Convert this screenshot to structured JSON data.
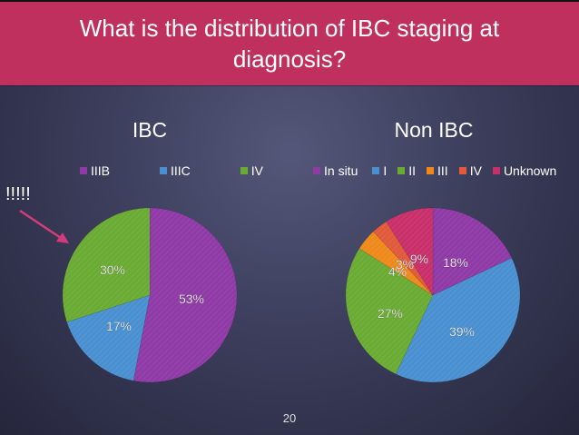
{
  "slide": {
    "title": "What is the distribution of IBC staging at diagnosis?",
    "annotation": "!!!!!",
    "page_number": "20"
  },
  "colors": {
    "title_band": "#c0305e",
    "arrow": "#d43b7a"
  },
  "chart_data": [
    {
      "type": "pie",
      "title": "IBC",
      "legend_position": "top",
      "categories": [
        "IIIB",
        "IIIC",
        "IV"
      ],
      "values": [
        53,
        17,
        30
      ],
      "labels": [
        "53%",
        "17%",
        "30%"
      ],
      "colors": [
        "#8f3aa6",
        "#4a90d0",
        "#6aab34"
      ],
      "legend_entries": [
        "IIIB",
        "IIIC",
        "IV"
      ],
      "legend_colors": [
        "#8f3aa6",
        "#4a90d0",
        "#6aab34"
      ]
    },
    {
      "type": "pie",
      "title": "Non IBC",
      "legend_position": "top",
      "categories": [
        "In situ",
        "I",
        "II",
        "III",
        "IV",
        "Unknown"
      ],
      "values": [
        18,
        39,
        27,
        4,
        3,
        9
      ],
      "labels": [
        "18%",
        "39%",
        "27%",
        "4%",
        "3%",
        "9%"
      ],
      "colors": [
        "#8f3aa6",
        "#4a90d0",
        "#6aab34",
        "#ee8a1c",
        "#e05a3b",
        "#c9306a"
      ],
      "legend_entries": [
        "In situ",
        "I",
        "II",
        "III",
        "IV",
        "Unknown"
      ],
      "legend_colors": [
        "#8f3aa6",
        "#4a90d0",
        "#6aab34",
        "#ee8a1c",
        "#e05a3b",
        "#c9306a"
      ]
    }
  ]
}
